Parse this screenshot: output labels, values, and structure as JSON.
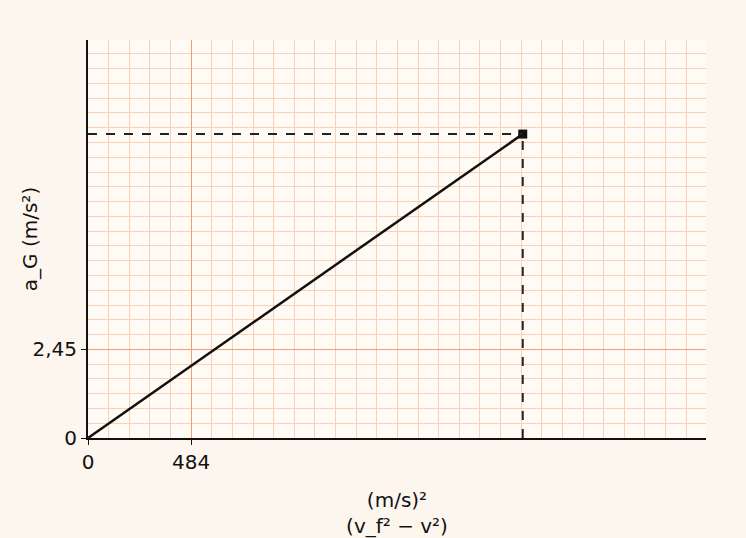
{
  "chart_data": {
    "type": "line",
    "x_label": "(m/s)²",
    "x_label_2": "(v_f² − v²)",
    "y_label": "a_G (m/s²)",
    "x": [
      0,
      2040
    ],
    "values": [
      0,
      8.4
    ],
    "color": "#111111",
    "xlim": [
      0,
      2900
    ],
    "ylim": [
      0,
      11
    ],
    "xticks": [
      0,
      484
    ],
    "yticks": [
      0,
      {
        "value": 2.45,
        "label": "2,45"
      }
    ],
    "grid": true
  }
}
